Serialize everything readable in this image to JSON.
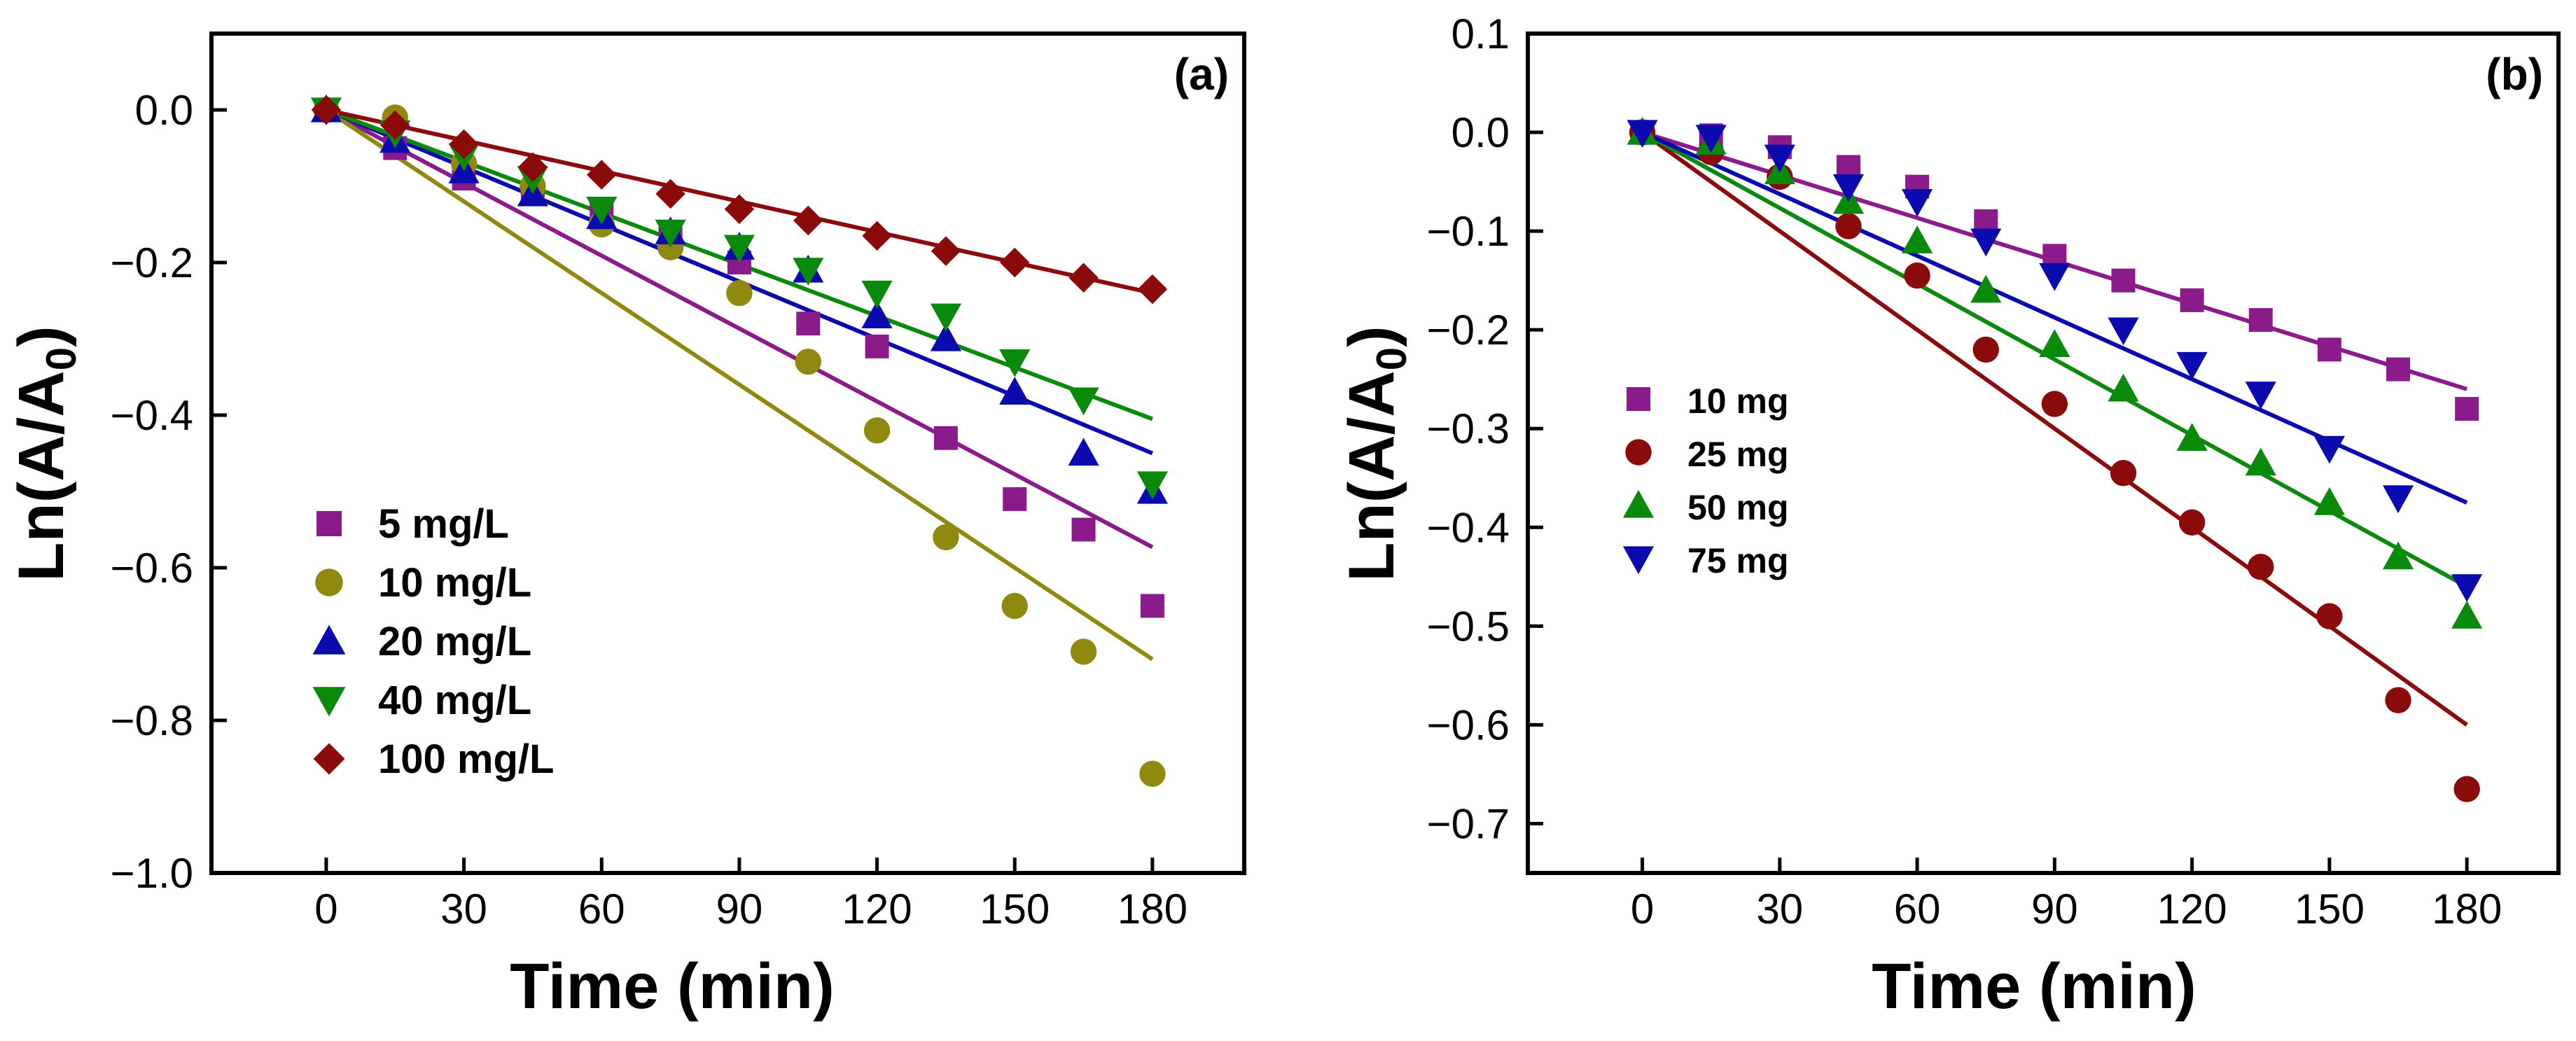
{
  "chart_data": [
    {
      "type": "scatter",
      "panel_label": "(a)",
      "xlabel": "Time (min)",
      "ylabel": "Ln(A/A0)",
      "ylabel_main": "Ln(A/A",
      "ylabel_sub": "0",
      "ylabel_close": ")",
      "xlim": [
        -25,
        200
      ],
      "ylim": [
        -1.0,
        0.1
      ],
      "xticks": [
        0,
        30,
        60,
        90,
        120,
        150,
        180
      ],
      "xtick_labels": [
        "0",
        "30",
        "60",
        "90",
        "120",
        "150",
        "180"
      ],
      "yticks": [
        0.0,
        -0.2,
        -0.4,
        -0.6,
        -0.8,
        -1.0
      ],
      "ytick_labels": [
        "0.0",
        "−0.2",
        "−0.4",
        "−0.6",
        "−0.8",
        "−1.0"
      ],
      "legend_position": "lower-left",
      "x": [
        0,
        15,
        30,
        45,
        60,
        75,
        90,
        105,
        120,
        135,
        150,
        165,
        180
      ],
      "series": [
        {
          "name": "5 mg/L",
          "marker": "square",
          "color": "#8B1A8B",
          "values": [
            0,
            -0.05,
            -0.09,
            -0.11,
            -0.13,
            -0.16,
            -0.2,
            -0.28,
            -0.31,
            -0.43,
            -0.51,
            -0.55,
            -0.65
          ],
          "fit": [
            [
              0,
              0
            ],
            [
              180,
              -0.573
            ]
          ]
        },
        {
          "name": "10 mg/L",
          "marker": "circle",
          "color": "#8F8A0F",
          "values": [
            0,
            -0.01,
            -0.07,
            -0.1,
            -0.15,
            -0.18,
            -0.24,
            -0.33,
            -0.42,
            -0.56,
            -0.65,
            -0.71,
            -0.87
          ],
          "fit": [
            [
              0,
              0
            ],
            [
              180,
              -0.72
            ]
          ]
        },
        {
          "name": "20 mg/L",
          "marker": "triangle-up",
          "color": "#0A0AAE",
          "values": [
            0,
            -0.04,
            -0.08,
            -0.11,
            -0.14,
            -0.16,
            -0.18,
            -0.21,
            -0.27,
            -0.3,
            -0.37,
            -0.45,
            -0.5
          ],
          "fit": [
            [
              0,
              0
            ],
            [
              180,
              -0.45
            ]
          ]
        },
        {
          "name": "40 mg/L",
          "marker": "triangle-down",
          "color": "#0A8A0A",
          "values": [
            0,
            -0.03,
            -0.06,
            -0.09,
            -0.13,
            -0.16,
            -0.18,
            -0.21,
            -0.24,
            -0.27,
            -0.33,
            -0.38,
            -0.49
          ],
          "fit": [
            [
              0,
              0
            ],
            [
              180,
              -0.405
            ]
          ]
        },
        {
          "name": "100 mg/L",
          "marker": "diamond",
          "color": "#8B0A0A",
          "values": [
            0,
            -0.02,
            -0.045,
            -0.075,
            -0.085,
            -0.11,
            -0.13,
            -0.145,
            -0.165,
            -0.185,
            -0.2,
            -0.22,
            -0.235
          ],
          "fit": [
            [
              0,
              0
            ],
            [
              180,
              -0.24
            ]
          ]
        }
      ]
    },
    {
      "type": "scatter",
      "panel_label": "(b)",
      "xlabel": "Time (min)",
      "ylabel": "Ln(A/A0)",
      "ylabel_main": "Ln(A/A",
      "ylabel_sub": "0",
      "ylabel_close": ")",
      "xlim": [
        -25,
        200
      ],
      "ylim": [
        -0.75,
        0.1
      ],
      "xticks": [
        0,
        30,
        60,
        90,
        120,
        150,
        180
      ],
      "xtick_labels": [
        "0",
        "30",
        "60",
        "90",
        "120",
        "150",
        "180"
      ],
      "yticks": [
        0.1,
        0.0,
        -0.1,
        -0.2,
        -0.3,
        -0.4,
        -0.5,
        -0.6,
        -0.7
      ],
      "ytick_labels": [
        "0.1",
        "0.0",
        "−0.1",
        "−0.2",
        "−0.3",
        "−0.4",
        "−0.5",
        "−0.6",
        "−0.7"
      ],
      "legend_position": "center-left",
      "x": [
        0,
        15,
        30,
        45,
        60,
        75,
        90,
        105,
        120,
        135,
        150,
        165,
        180
      ],
      "series": [
        {
          "name": "10 mg",
          "marker": "square",
          "color": "#8B1A8B",
          "values": [
            0,
            -0.003,
            -0.015,
            -0.035,
            -0.055,
            -0.09,
            -0.125,
            -0.15,
            -0.17,
            -0.19,
            -0.22,
            -0.24,
            -0.28
          ],
          "fit": [
            [
              0,
              0
            ],
            [
              180,
              -0.26
            ]
          ]
        },
        {
          "name": "25 mg",
          "marker": "circle",
          "color": "#8B0A0A",
          "values": [
            0,
            -0.02,
            -0.045,
            -0.095,
            -0.145,
            -0.22,
            -0.275,
            -0.345,
            -0.395,
            -0.44,
            -0.49,
            -0.575,
            -0.665
          ],
          "fit": [
            [
              0,
              0
            ],
            [
              180,
              -0.6
            ]
          ]
        },
        {
          "name": "50 mg",
          "marker": "triangle-up",
          "color": "#0A8A0A",
          "values": [
            0,
            -0.01,
            -0.04,
            -0.07,
            -0.11,
            -0.16,
            -0.215,
            -0.26,
            -0.31,
            -0.335,
            -0.375,
            -0.43,
            -0.49
          ],
          "fit": [
            [
              0,
              0
            ],
            [
              180,
              -0.46
            ]
          ]
        },
        {
          "name": "75 mg",
          "marker": "triangle-down",
          "color": "#0A0AAE",
          "values": [
            0,
            -0.005,
            -0.025,
            -0.055,
            -0.07,
            -0.11,
            -0.145,
            -0.2,
            -0.235,
            -0.265,
            -0.32,
            -0.37,
            -0.46
          ],
          "fit": [
            [
              0,
              0
            ],
            [
              180,
              -0.375
            ]
          ]
        }
      ]
    }
  ]
}
